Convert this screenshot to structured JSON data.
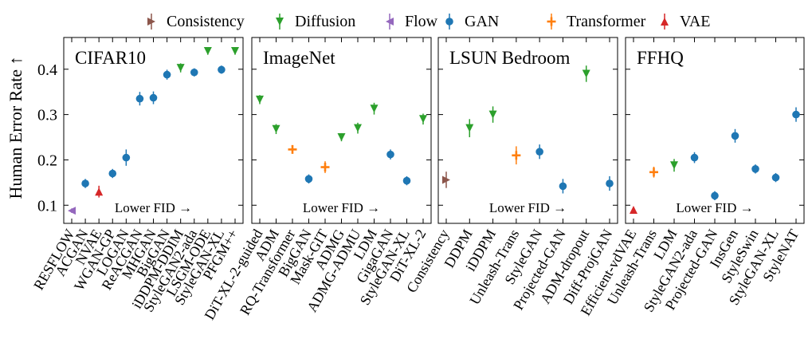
{
  "figure": {
    "ylabel": "Human Error Rate ↑",
    "legend_placement": "top-center"
  },
  "chart_data": [
    {
      "type": "scatter",
      "title": "CIFAR10",
      "annotation": "Lower FID  →",
      "ylim": [
        0.06,
        0.47
      ],
      "yticks": [
        0.1,
        0.2,
        0.3,
        0.4
      ],
      "yticklabels": [
        "0.1",
        "0.2",
        "0.3",
        "0.4"
      ],
      "grid": false,
      "points": [
        {
          "model": "RESFLOW",
          "family": "Flow",
          "y": 0.088,
          "err": 0.005
        },
        {
          "model": "ACGAN",
          "family": "GAN",
          "y": 0.148,
          "err": 0.01
        },
        {
          "model": "NVAE",
          "family": "VAE",
          "y": 0.13,
          "err": 0.013
        },
        {
          "model": "WGAN-GP",
          "family": "GAN",
          "y": 0.17,
          "err": 0.01
        },
        {
          "model": "LOGAN",
          "family": "GAN",
          "y": 0.205,
          "err": 0.018
        },
        {
          "model": "ReACGAN",
          "family": "GAN",
          "y": 0.335,
          "err": 0.015
        },
        {
          "model": "MHGAN",
          "family": "GAN",
          "y": 0.337,
          "err": 0.014
        },
        {
          "model": "BigGAN",
          "family": "GAN",
          "y": 0.388,
          "err": 0.011
        },
        {
          "model": "iDDPM-DDIM",
          "family": "Diffusion",
          "y": 0.403,
          "err": 0.01
        },
        {
          "model": "StyleGAN2-ada",
          "family": "GAN",
          "y": 0.393,
          "err": 0.009
        },
        {
          "model": "LSGM-ODE",
          "family": "Diffusion",
          "y": 0.44,
          "err": 0.008
        },
        {
          "model": "StyleGAN-XL",
          "family": "GAN",
          "y": 0.399,
          "err": 0.009
        },
        {
          "model": "PFGM++",
          "family": "Diffusion",
          "y": 0.44,
          "err": 0.008
        }
      ]
    },
    {
      "type": "scatter",
      "title": "ImageNet",
      "annotation": "Lower FID  →",
      "ylim": [
        0.06,
        0.47
      ],
      "yticks": [
        0.1,
        0.2,
        0.3,
        0.4
      ],
      "grid": false,
      "points": [
        {
          "model": "DiT-XL-2-guided",
          "family": "Diffusion",
          "y": 0.333,
          "err": 0.01
        },
        {
          "model": "ADM",
          "family": "Diffusion",
          "y": 0.268,
          "err": 0.011
        },
        {
          "model": "RQ-Transformer",
          "family": "Transformer",
          "y": 0.223,
          "err": 0.009
        },
        {
          "model": "BigGAN",
          "family": "GAN",
          "y": 0.158,
          "err": 0.01
        },
        {
          "model": "Mask-GIT",
          "family": "Transformer",
          "y": 0.184,
          "err": 0.013
        },
        {
          "model": "ADMG",
          "family": "Diffusion",
          "y": 0.25,
          "err": 0.009
        },
        {
          "model": "ADMG-ADMU",
          "family": "Diffusion",
          "y": 0.27,
          "err": 0.012
        },
        {
          "model": "LDM",
          "family": "Diffusion",
          "y": 0.313,
          "err": 0.013
        },
        {
          "model": "GigaGAN",
          "family": "GAN",
          "y": 0.212,
          "err": 0.011
        },
        {
          "model": "StyleGAN-XL",
          "family": "GAN",
          "y": 0.154,
          "err": 0.01
        },
        {
          "model": "DiT-XL-2",
          "family": "Diffusion",
          "y": 0.29,
          "err": 0.012
        }
      ]
    },
    {
      "type": "scatter",
      "title": "LSUN Bedroom",
      "annotation": "Lower FID  →",
      "ylim": [
        0.06,
        0.47
      ],
      "yticks": [
        0.1,
        0.2,
        0.3,
        0.4
      ],
      "grid": false,
      "points": [
        {
          "model": "Consistency",
          "family": "Consistency",
          "y": 0.156,
          "err": 0.018
        },
        {
          "model": "DDPM",
          "family": "Diffusion",
          "y": 0.27,
          "err": 0.02
        },
        {
          "model": "iDDPM",
          "family": "Diffusion",
          "y": 0.3,
          "err": 0.018
        },
        {
          "model": "Unleash-Trans",
          "family": "Transformer",
          "y": 0.21,
          "err": 0.02
        },
        {
          "model": "StyleGAN",
          "family": "GAN",
          "y": 0.218,
          "err": 0.016
        },
        {
          "model": "Projected-GAN",
          "family": "GAN",
          "y": 0.142,
          "err": 0.016
        },
        {
          "model": "ADM-dropout",
          "family": "Diffusion",
          "y": 0.39,
          "err": 0.018
        },
        {
          "model": "Diff-ProjGAN",
          "family": "GAN",
          "y": 0.148,
          "err": 0.016
        }
      ]
    },
    {
      "type": "scatter",
      "title": "FFHQ",
      "annotation": "Lower FID  →",
      "ylim": [
        0.06,
        0.47
      ],
      "yticks": [
        0.1,
        0.2,
        0.3,
        0.4
      ],
      "grid": false,
      "points": [
        {
          "model": "Efficient-vdVAE",
          "family": "VAE",
          "y": 0.09,
          "err": 0.006
        },
        {
          "model": "Unleash-Trans",
          "family": "Transformer",
          "y": 0.173,
          "err": 0.012
        },
        {
          "model": "LDM",
          "family": "Diffusion",
          "y": 0.188,
          "err": 0.014
        },
        {
          "model": "StyleGAN2-ada",
          "family": "GAN",
          "y": 0.205,
          "err": 0.012
        },
        {
          "model": "Projected-GAN",
          "family": "GAN",
          "y": 0.121,
          "err": 0.01
        },
        {
          "model": "InsGen",
          "family": "GAN",
          "y": 0.253,
          "err": 0.015
        },
        {
          "model": "StyleSwin",
          "family": "GAN",
          "y": 0.18,
          "err": 0.01
        },
        {
          "model": "StyleGAN-XL",
          "family": "GAN",
          "y": 0.161,
          "err": 0.01
        },
        {
          "model": "StyleNAT",
          "family": "GAN",
          "y": 0.3,
          "err": 0.016
        }
      ]
    }
  ],
  "legend": [
    {
      "label": "Consistency",
      "color": "#8c564b",
      "marker": "triangle-right"
    },
    {
      "label": "Diffusion",
      "color": "#2ca02c",
      "marker": "triangle-down"
    },
    {
      "label": "Flow",
      "color": "#9467bd",
      "marker": "triangle-left"
    },
    {
      "label": "GAN",
      "color": "#1f77b4",
      "marker": "circle"
    },
    {
      "label": "Transformer",
      "color": "#ff7f0e",
      "marker": "plus"
    },
    {
      "label": "VAE",
      "color": "#d62728",
      "marker": "triangle-up"
    }
  ]
}
